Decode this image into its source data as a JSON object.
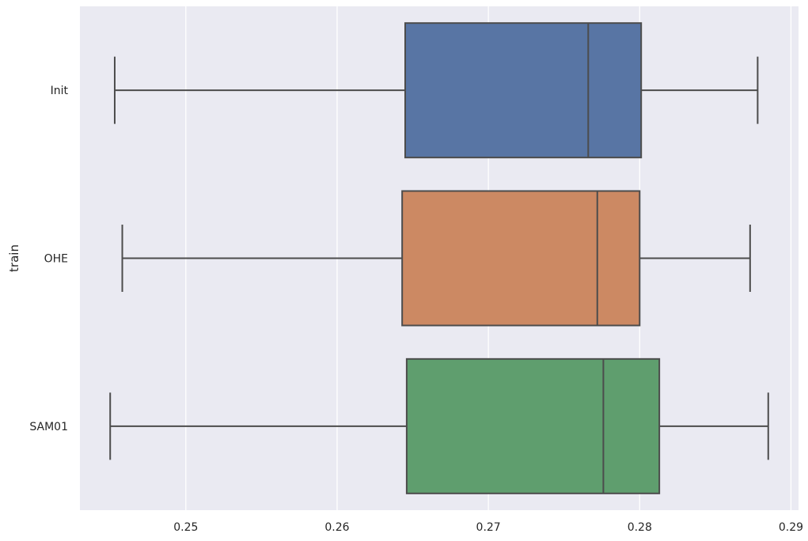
{
  "chart_data": {
    "type": "boxplot",
    "orientation": "horizontal",
    "title": "",
    "xlabel": "",
    "ylabel": "train",
    "xlim": [
      0.243,
      0.2905
    ],
    "xticks": [
      0.25,
      0.26,
      0.27,
      0.28,
      0.29
    ],
    "xtick_labels": [
      "0.25",
      "0.26",
      "0.27",
      "0.28",
      "0.29"
    ],
    "grid": true,
    "categories": [
      "Init",
      "OHE",
      "SAM01"
    ],
    "boxes": [
      {
        "category": "Init",
        "whisker_low": 0.2453,
        "q1": 0.2645,
        "median": 0.2766,
        "q3": 0.2801,
        "whisker_high": 0.2878,
        "color": "#5875a4"
      },
      {
        "category": "OHE",
        "whisker_low": 0.2458,
        "q1": 0.2643,
        "median": 0.2772,
        "q3": 0.28,
        "whisker_high": 0.2873,
        "color": "#cc8963"
      },
      {
        "category": "SAM01",
        "whisker_low": 0.245,
        "q1": 0.2646,
        "median": 0.2776,
        "q3": 0.2813,
        "whisker_high": 0.2885,
        "color": "#5f9e6e"
      }
    ],
    "background_color": "#eaeaf2",
    "line_color": "#4c4c4c"
  }
}
